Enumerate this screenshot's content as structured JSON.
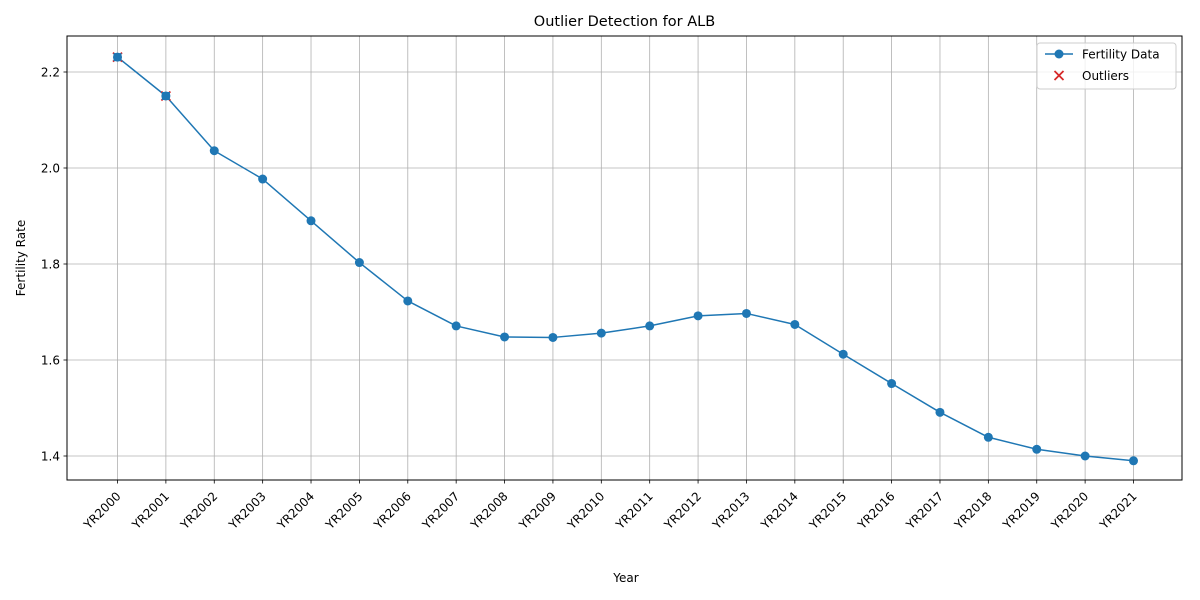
{
  "chart_data": {
    "type": "line",
    "title": "Outlier Detection for ALB",
    "xlabel": "Year",
    "ylabel": "Fertility Rate",
    "categories": [
      "YR2000",
      "YR2001",
      "YR2002",
      "YR2003",
      "YR2004",
      "YR2005",
      "YR2006",
      "YR2007",
      "YR2008",
      "YR2009",
      "YR2010",
      "YR2011",
      "YR2012",
      "YR2013",
      "YR2014",
      "YR2015",
      "YR2016",
      "YR2017",
      "YR2018",
      "YR2019",
      "YR2020",
      "YR2021"
    ],
    "series": [
      {
        "name": "Fertility Data",
        "color": "#1f77b4",
        "marker": "circle",
        "values": [
          2.231,
          2.15,
          2.036,
          1.977,
          1.89,
          1.803,
          1.723,
          1.671,
          1.648,
          1.647,
          1.656,
          1.671,
          1.692,
          1.697,
          1.674,
          1.612,
          1.551,
          1.491,
          1.439,
          1.414,
          1.4,
          1.39
        ]
      }
    ],
    "outliers": {
      "name": "Outliers",
      "color": "#d62728",
      "marker": "x",
      "categories": [
        "YR2000",
        "YR2001"
      ],
      "values": [
        2.231,
        2.15
      ]
    },
    "ylim": [
      1.35,
      2.275
    ],
    "yticks": [
      "1.4",
      "1.6",
      "1.8",
      "2.0",
      "2.2"
    ],
    "grid": true,
    "legend_position": "top-right"
  }
}
